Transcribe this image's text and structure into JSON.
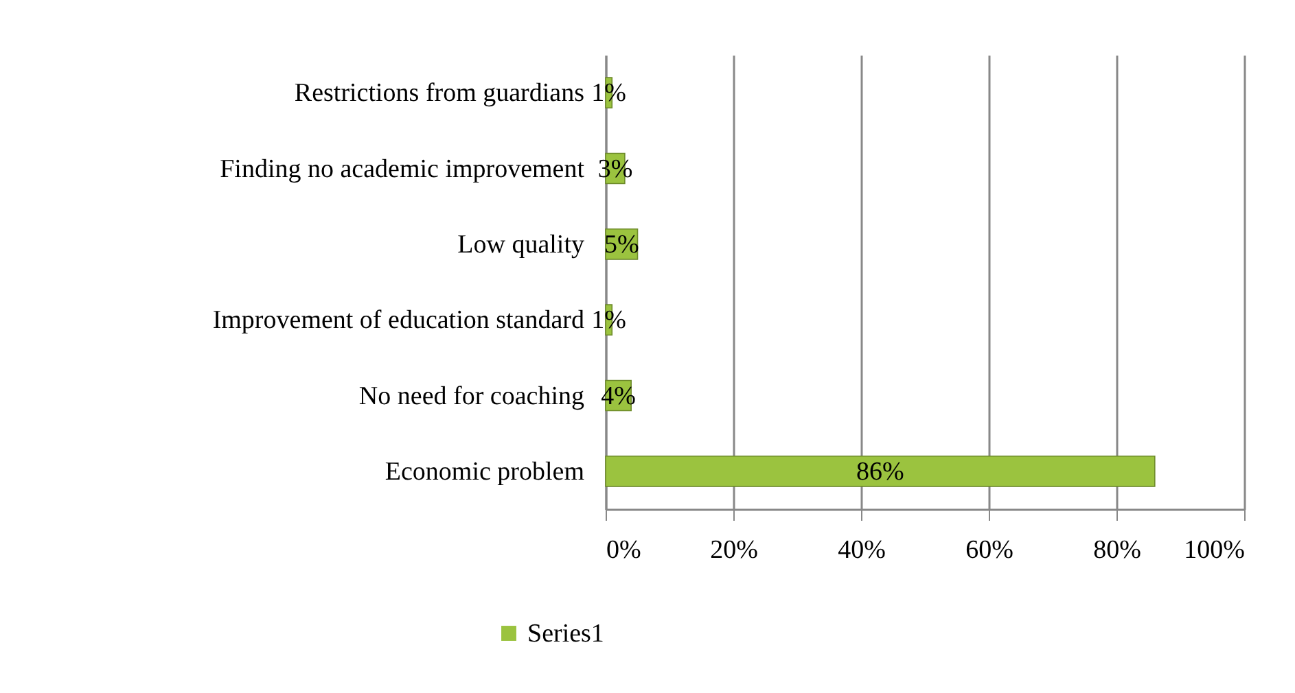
{
  "chart_data": {
    "type": "bar",
    "orientation": "horizontal",
    "categories": [
      "Restrictions from guardians",
      "Finding no academic improvement",
      "Low quality",
      "Improvement of education standard",
      "No need for coaching",
      "Economic problem"
    ],
    "series": [
      {
        "name": "Series1",
        "color": "#9bc33f",
        "values": [
          1,
          3,
          5,
          1,
          4,
          86
        ],
        "value_labels": [
          "1%",
          "3%",
          "5%",
          "1%",
          "4%",
          "86%"
        ]
      }
    ],
    "xlim": [
      0,
      100
    ],
    "xticks": [
      {
        "value": 0,
        "label": "0%"
      },
      {
        "value": 20,
        "label": "20%"
      },
      {
        "value": 40,
        "label": "40%"
      },
      {
        "value": 60,
        "label": "60%"
      },
      {
        "value": 80,
        "label": "80%"
      },
      {
        "value": 100,
        "label": "100%"
      }
    ],
    "grid": "x",
    "legend": "bottom"
  }
}
